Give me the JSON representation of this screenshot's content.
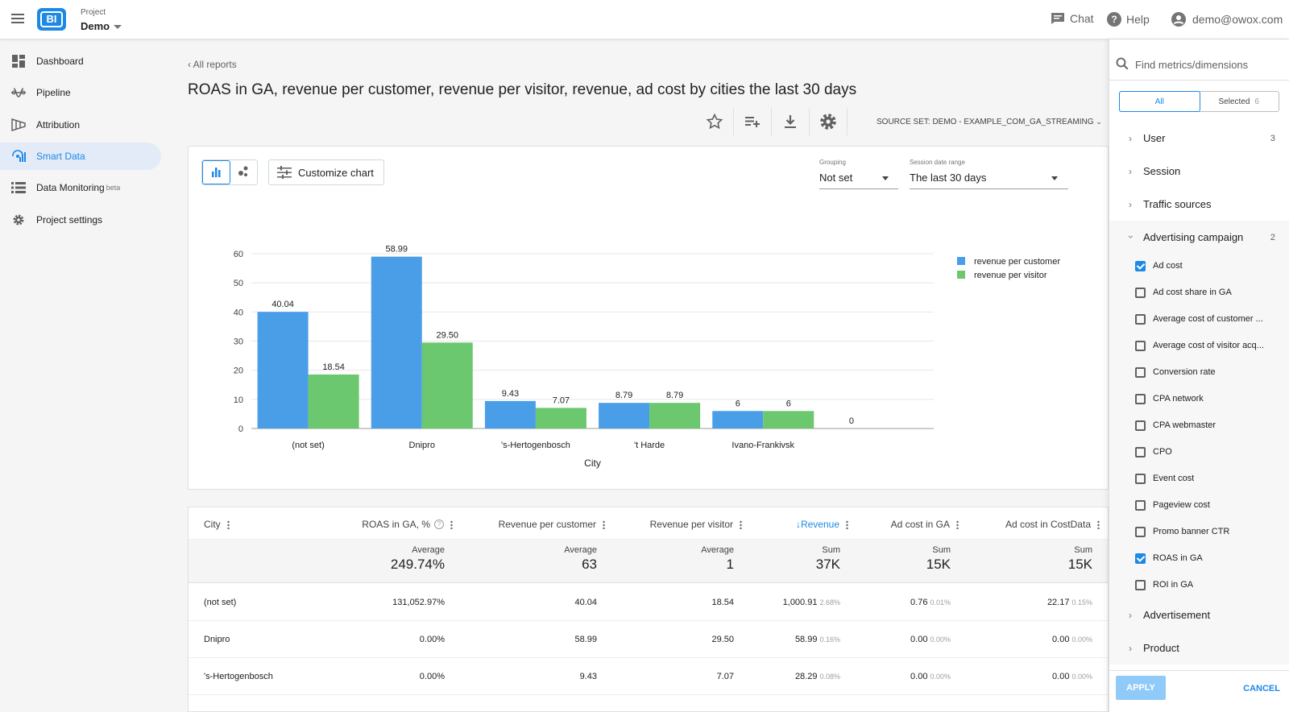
{
  "header": {
    "project_label": "Project",
    "project_name": "Demo",
    "chat_label": "Chat",
    "help_label": "Help",
    "user_email": "demo@owox.com"
  },
  "sidebar": {
    "items": [
      {
        "label": "Dashboard",
        "icon": "dashboard-icon"
      },
      {
        "label": "Pipeline",
        "icon": "pipeline-icon"
      },
      {
        "label": "Attribution",
        "icon": "attribution-icon"
      },
      {
        "label": "Smart Data",
        "icon": "smart-data-icon",
        "active": true
      },
      {
        "label": "Data Monitoring",
        "badge": "beta",
        "icon": "list-icon"
      },
      {
        "label": "Project settings",
        "icon": "gear-icon"
      }
    ]
  },
  "report": {
    "back_label": "All reports",
    "title": "ROAS in GA, revenue per customer, revenue per visitor, revenue, ad cost by cities the last 30 days",
    "source_set": "SOURCE SET:  DEMO - EXAMPLE_COM_GA_STREAMING"
  },
  "chart_controls": {
    "customize_label": "Customize chart",
    "grouping_label": "Grouping",
    "grouping_value": "Not set",
    "date_range_label": "Session date range",
    "date_range_value": "The last 30 days"
  },
  "chart_data": {
    "type": "bar",
    "categories": [
      "(not set)",
      "Dnipro",
      "'s-Hertogenbosch",
      "'t Harde",
      "Ivano-Frankivsk",
      ""
    ],
    "series": [
      {
        "name": "revenue per customer",
        "color": "#4a9ee8",
        "values": [
          40.04,
          58.99,
          9.43,
          8.79,
          6,
          0
        ]
      },
      {
        "name": "revenue per visitor",
        "color": "#6bc86f",
        "values": [
          18.54,
          29.5,
          7.07,
          8.79,
          6,
          null
        ]
      }
    ],
    "data_labels": [
      [
        "40.04",
        "58.99",
        "9.43",
        "8.79",
        "6",
        "0"
      ],
      [
        "18.54",
        "29.50",
        "7.07",
        "8.79",
        "6",
        ""
      ]
    ],
    "xlabel": "City",
    "ylabel": "",
    "ylim": [
      0,
      60
    ],
    "yticks": [
      "0",
      "10",
      "20",
      "30",
      "40",
      "50",
      "60"
    ],
    "grid": true,
    "legend": "top-right"
  },
  "table": {
    "columns": [
      {
        "label": "City"
      },
      {
        "label": "ROAS in GA, %",
        "help": "?"
      },
      {
        "label": "Revenue per customer"
      },
      {
        "label": "Revenue per visitor"
      },
      {
        "label": "Revenue",
        "sorted": "↓"
      },
      {
        "label": "Ad cost in GA"
      },
      {
        "label": "Ad cost in CostData"
      }
    ],
    "aggregates": [
      {
        "label": "Average",
        "value": "249.74%"
      },
      {
        "label": "Average",
        "value": "63"
      },
      {
        "label": "Average",
        "value": "1"
      },
      {
        "label": "Sum",
        "value": "37K"
      },
      {
        "label": "Sum",
        "value": "15K"
      },
      {
        "label": "Sum",
        "value": "15K"
      }
    ],
    "rows": [
      {
        "city": "(not set)",
        "roas": "131,052.97%",
        "rpc": "40.04",
        "rpv": "18.54",
        "revenue": "1,000.91",
        "revenue_pct": "2.68%",
        "adcost_ga": "0.76",
        "adcost_ga_pct": "0.01%",
        "adcost_cd": "22.17",
        "adcost_cd_pct": "0.15%"
      },
      {
        "city": "Dnipro",
        "roas": "0.00%",
        "rpc": "58.99",
        "rpv": "29.50",
        "revenue": "58.99",
        "revenue_pct": "0.16%",
        "adcost_ga": "0.00",
        "adcost_ga_pct": "0.00%",
        "adcost_cd": "0.00",
        "adcost_cd_pct": "0.00%"
      },
      {
        "city": "'s-Hertogenbosch",
        "roas": "0.00%",
        "rpc": "9.43",
        "rpv": "7.07",
        "revenue": "28.29",
        "revenue_pct": "0.08%",
        "adcost_ga": "0.00",
        "adcost_ga_pct": "0.00%",
        "adcost_cd": "0.00",
        "adcost_cd_pct": "0.00%"
      }
    ]
  },
  "panel": {
    "search_placeholder": "Find metrics/dimensions",
    "tab_all": "All",
    "tab_selected": "Selected",
    "selected_count": "6",
    "groups_top": [
      {
        "label": "User",
        "count": "3"
      },
      {
        "label": "Session",
        "count": ""
      },
      {
        "label": "Traffic sources",
        "count": ""
      }
    ],
    "open_group": {
      "label": "Advertising campaign",
      "count": "2"
    },
    "metrics": [
      {
        "label": "Ad cost",
        "checked": true
      },
      {
        "label": "Ad cost share in GA",
        "checked": false
      },
      {
        "label": "Average cost of customer ...",
        "checked": false
      },
      {
        "label": "Average cost of visitor acq...",
        "checked": false
      },
      {
        "label": "Conversion rate",
        "checked": false
      },
      {
        "label": "CPA network",
        "checked": false
      },
      {
        "label": "CPA webmaster",
        "checked": false
      },
      {
        "label": "CPO",
        "checked": false
      },
      {
        "label": "Event cost",
        "checked": false
      },
      {
        "label": "Pageview cost",
        "checked": false
      },
      {
        "label": "Promo banner CTR",
        "checked": false
      },
      {
        "label": "ROAS in GA",
        "checked": true
      },
      {
        "label": "ROI in GA",
        "checked": false
      }
    ],
    "groups_bottom": [
      {
        "label": "Advertisement"
      },
      {
        "label": "Product"
      }
    ],
    "apply_label": "APPLY",
    "cancel_label": "CANCEL"
  }
}
